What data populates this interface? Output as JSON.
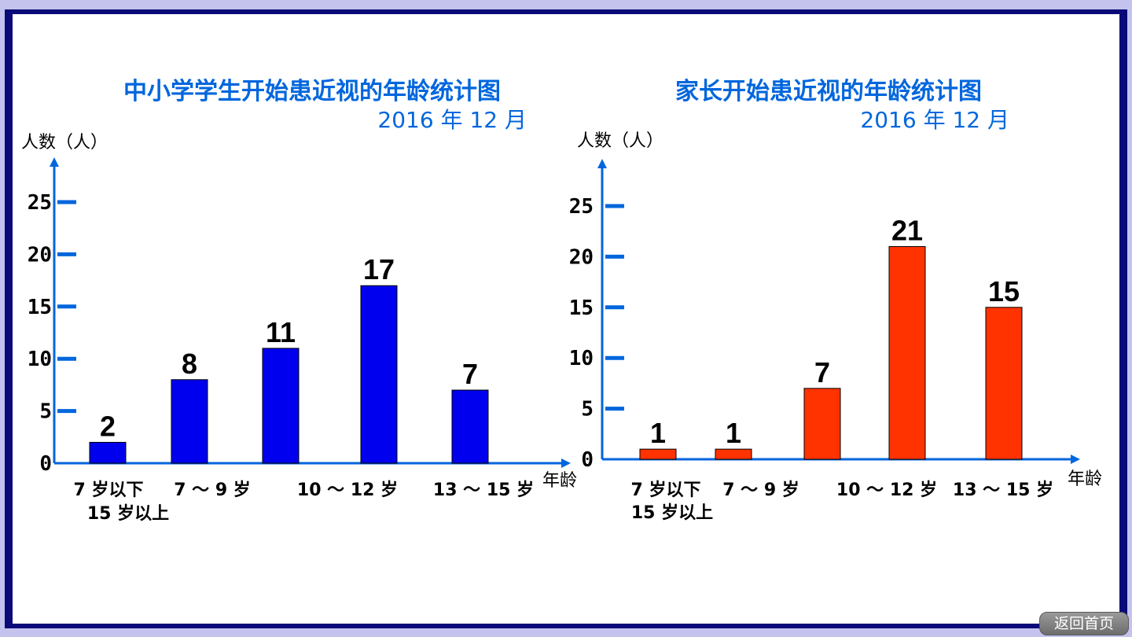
{
  "home_button": "返回首页",
  "charts": [
    {
      "title": "中小学学生开始患近视的年龄统计图",
      "date": "2016 年 12 月",
      "ylabel": "人数（人）",
      "xlabel": "年龄",
      "bar_color": "#0000ee",
      "y_ticks": [
        "0",
        "5",
        "10",
        "15",
        "20",
        "25"
      ],
      "categories": [
        [
          "7 岁以下",
          "15 岁以上"
        ],
        [
          "7 ～ 9 岁"
        ],
        [
          "10 ～ 12 岁"
        ],
        [
          "13 ～ 15 岁"
        ]
      ],
      "bar_labels": [
        "2",
        "8",
        "11",
        "17",
        "7"
      ]
    },
    {
      "title": "家长开始患近视的年龄统计图",
      "date": "2016 年 12 月",
      "ylabel": "人数（人）",
      "xlabel": "年龄",
      "bar_color": "#ff3300",
      "y_ticks": [
        "0",
        "5",
        "10",
        "15",
        "20",
        "25"
      ],
      "categories": [
        [
          "7 岁以下",
          "15 岁以上"
        ],
        [
          "7 ～ 9 岁"
        ],
        [
          "10 ～ 12 岁"
        ],
        [
          "13 ～ 15 岁"
        ]
      ],
      "bar_labels": [
        "1",
        "1",
        "7",
        "21",
        "15"
      ]
    }
  ],
  "chart_data": [
    {
      "type": "bar",
      "title": "中小学学生开始患近视的年龄统计图",
      "subtitle": "2016 年 12 月",
      "ylabel": "人数（人）",
      "xlabel": "年龄",
      "ylim": [
        0,
        25
      ],
      "values": [
        2,
        8,
        11,
        17,
        7
      ],
      "grid": false
    },
    {
      "type": "bar",
      "title": "家长开始患近视的年龄统计图",
      "subtitle": "2016 年 12 月",
      "ylabel": "人数（人）",
      "xlabel": "年龄",
      "ylim": [
        0,
        25
      ],
      "values": [
        1,
        1,
        7,
        21,
        15
      ],
      "grid": false
    }
  ]
}
